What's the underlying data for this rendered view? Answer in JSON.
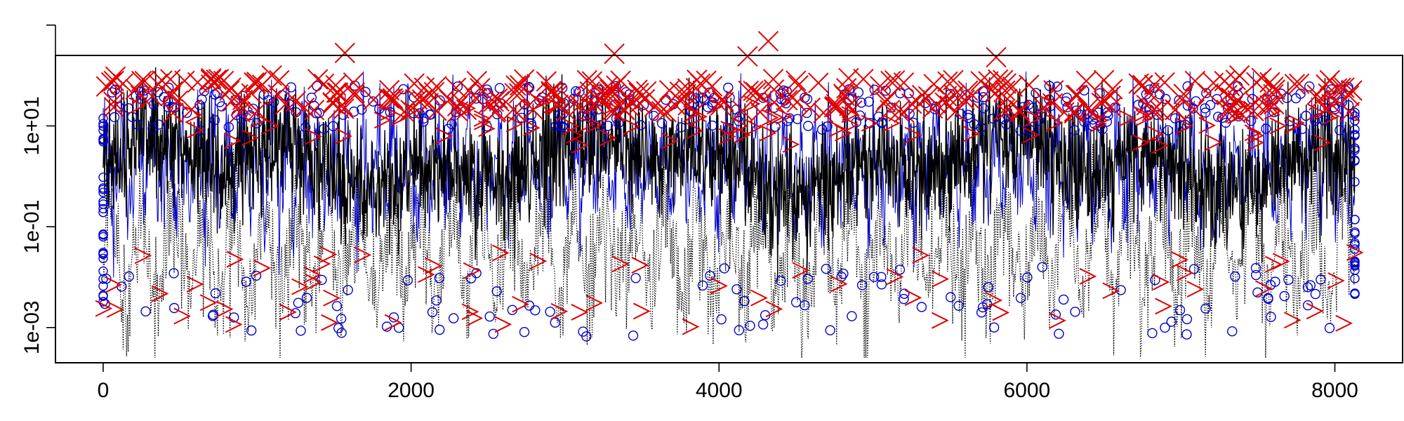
{
  "chart_data": {
    "type": "line",
    "title": "",
    "xlabel": "",
    "ylabel": "",
    "x_range": [
      0,
      8130
    ],
    "xlim": [
      -310,
      8440
    ],
    "ylim": [
      0.0002,
      250
    ],
    "y_scale": "log10",
    "x_ticks": [
      {
        "value": 0,
        "label": "0"
      },
      {
        "value": 2000,
        "label": "2000"
      },
      {
        "value": 4000,
        "label": "4000"
      },
      {
        "value": 6000,
        "label": "6000"
      },
      {
        "value": 8000,
        "label": "8000"
      }
    ],
    "y_ticks": [
      {
        "value": 0.001,
        "label": "1e-03"
      },
      {
        "value": 0.1,
        "label": "1e-01"
      },
      {
        "value": 10,
        "label": "1e+01"
      },
      {
        "value": 1000,
        "label": ""
      }
    ],
    "grid": false,
    "legend": "none",
    "line_color": "#000000",
    "circle_color": "#0000cc",
    "cross_color": "#e00000",
    "highlighted_crosses": [
      {
        "x": 80,
        "y": 95
      },
      {
        "x": 1095,
        "y": 100
      },
      {
        "x": 1570,
        "y": 280
      },
      {
        "x": 3320,
        "y": 270
      },
      {
        "x": 4185,
        "y": 240
      },
      {
        "x": 4320,
        "y": 480
      },
      {
        "x": 5800,
        "y": 230
      },
      {
        "x": 7380,
        "y": 100
      }
    ]
  }
}
